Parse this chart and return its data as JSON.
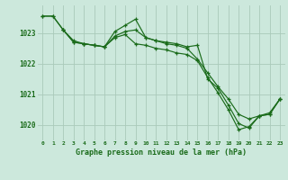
{
  "line1": {
    "x": [
      0,
      1,
      2,
      3,
      4,
      5,
      6,
      7,
      8,
      9,
      10,
      11,
      12,
      13,
      14,
      15,
      16,
      17,
      18,
      19,
      20,
      21,
      22,
      23
    ],
    "y": [
      1023.55,
      1023.55,
      1023.1,
      1022.7,
      1022.65,
      1022.6,
      1022.55,
      1023.05,
      1023.25,
      1023.45,
      1022.85,
      1022.75,
      1022.7,
      1022.65,
      1022.55,
      1022.6,
      1021.5,
      1021.2,
      1020.65,
      1020.05,
      1019.9,
      1020.3,
      1020.35,
      1020.85
    ]
  },
  "line2": {
    "x": [
      0,
      1,
      2,
      3,
      4,
      5,
      6,
      7,
      8,
      9,
      10,
      11,
      12,
      13,
      14,
      15,
      16,
      17,
      18,
      19,
      20,
      21,
      22,
      23
    ],
    "y": [
      1023.55,
      1023.55,
      1023.1,
      1022.7,
      1022.65,
      1022.6,
      1022.55,
      1022.9,
      1023.05,
      1023.1,
      1022.85,
      1022.75,
      1022.65,
      1022.6,
      1022.5,
      1022.15,
      1021.7,
      1021.25,
      1020.85,
      1020.35,
      1020.2,
      1020.3,
      1020.4,
      1020.85
    ]
  },
  "line3": {
    "x": [
      2,
      3,
      4,
      5,
      6,
      7,
      8,
      9,
      10,
      11,
      12,
      13,
      14,
      15,
      16,
      17,
      18,
      19,
      20,
      21,
      22,
      23
    ],
    "y": [
      1023.1,
      1022.75,
      1022.65,
      1022.6,
      1022.55,
      1022.85,
      1022.95,
      1022.65,
      1022.6,
      1022.5,
      1022.45,
      1022.35,
      1022.3,
      1022.1,
      1021.55,
      1021.05,
      1020.5,
      1019.85,
      1019.95,
      1020.3,
      1020.35,
      1020.85
    ]
  },
  "color": "#1a6b1a",
  "bg_color": "#cce8dc",
  "grid_color": "#aacaba",
  "xlabel": "Graphe pression niveau de la mer (hPa)",
  "ylim": [
    1019.5,
    1023.9
  ],
  "xlim": [
    -0.5,
    23.5
  ],
  "yticks": [
    1020,
    1021,
    1022,
    1023
  ],
  "xticks": [
    0,
    1,
    2,
    3,
    4,
    5,
    6,
    7,
    8,
    9,
    10,
    11,
    12,
    13,
    14,
    15,
    16,
    17,
    18,
    19,
    20,
    21,
    22,
    23
  ]
}
